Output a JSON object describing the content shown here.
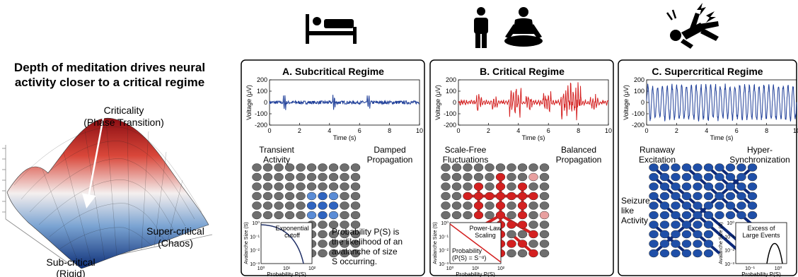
{
  "left": {
    "headline_1": "Depth of meditation drives neural",
    "headline_2": "activity closer to a critical regime",
    "criticality_1": "Criticality",
    "criticality_2": "(Phase Transition)",
    "supercritical_1": "Super-critical",
    "supercritical_2": "(Chaos)",
    "subcritical_1": "Sub-critical",
    "subcritical_2": "(Rigid)"
  },
  "icons": [
    "bed-icon",
    "standing-person-icon",
    "meditating-person-icon",
    "seizure-icon"
  ],
  "colors": {
    "blue": "#1f3f99",
    "red": "#d42020",
    "grey_node": "#6e6e6e",
    "panel_border": "#000000"
  },
  "panels": [
    {
      "title": "A. Subcritical Regime",
      "ylabel": "Voltage (μV)",
      "xlabel": "Time (s)",
      "yticks": [
        "200",
        "100",
        "0",
        "-100",
        "-200"
      ],
      "xticks": [
        "0",
        "2",
        "4",
        "6",
        "8",
        "10"
      ],
      "label_left_1": "Transient",
      "label_left_2": "Activity",
      "label_right_1": "Damped",
      "label_right_2": "Propagation",
      "inset_title_1": "Exponential",
      "inset_title_2": "cutoff",
      "note": [
        "Probability P(S) is",
        "the likelihood of an",
        "avalanche of size",
        "S occurring."
      ]
    },
    {
      "title": "B. Critical Regime",
      "ylabel": "Voltage (μV)",
      "xlabel": "Time (s)",
      "yticks": [
        "200",
        "100",
        "0",
        "-100",
        "-200"
      ],
      "xticks": [
        "0",
        "2",
        "4",
        "6",
        "8",
        "10"
      ],
      "label_left_1": "Scale-Free",
      "label_left_2": "Fluctuations",
      "label_right_1": "Balanced",
      "label_right_2": "Propagation",
      "inset_title_1": "Power-Law",
      "inset_title_2": "Scaling",
      "inset_formula_1": "Probability",
      "inset_formula_2": "(P(S) = S⁻ᵅ)"
    },
    {
      "title": "C. Supercritical Regime",
      "ylabel": "Voltage (μV)",
      "xlabel": "Time (s)",
      "yticks": [
        "200",
        "100",
        "0",
        "-100",
        "-200"
      ],
      "xticks": [
        "0",
        "2",
        "4",
        "6",
        "8",
        "10"
      ],
      "label_left_1": "Runaway",
      "label_left_2": "Excitation",
      "label_right_1": "Hyper-",
      "label_right_2": "Synchronization",
      "side_label": [
        "Seizure",
        "like",
        "Activity"
      ],
      "inset_title_1": "Excess of",
      "inset_title_2": "Large Events"
    }
  ],
  "inset_axes": {
    "ylabel": "Avalanche Size (S)",
    "xlabel": "Probability P(S)",
    "yticks": [
      "10⁰",
      "10⁻¹",
      "10⁻²",
      "10⁻³"
    ],
    "xticks": [
      "10⁰",
      "10¹",
      "10²"
    ],
    "xticks_c": [
      "10⁻¹",
      "10⁰"
    ]
  }
}
